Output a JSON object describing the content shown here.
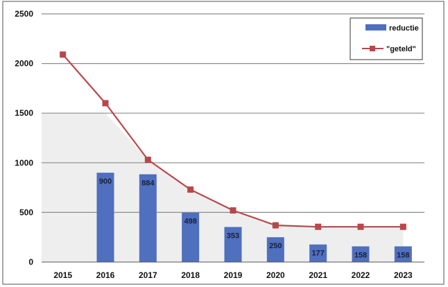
{
  "chart_data": {
    "type": "bar",
    "categories": [
      "2015",
      "2016",
      "2017",
      "2018",
      "2019",
      "2020",
      "2021",
      "2022",
      "2023"
    ],
    "ylim": [
      0,
      2500
    ],
    "yticks": [
      "0",
      "500",
      "1000",
      "1500",
      "2000",
      "2500"
    ],
    "grid": true,
    "legend_position": "top-right",
    "series": [
      {
        "name": "reductie",
        "kind": "bar",
        "color": "#4f6fbf",
        "values": [
          null,
          900,
          884,
          498,
          353,
          250,
          177,
          158,
          158
        ],
        "labels": [
          "",
          "900",
          "884",
          "498",
          "353",
          "250",
          "177",
          "158",
          "158"
        ]
      },
      {
        "name": "\"geteld\"",
        "kind": "line",
        "color": "#b8474b",
        "values": [
          2090,
          1600,
          1030,
          730,
          520,
          370,
          355,
          355,
          355
        ]
      }
    ],
    "shaded_region_color": "#eeeeee"
  }
}
